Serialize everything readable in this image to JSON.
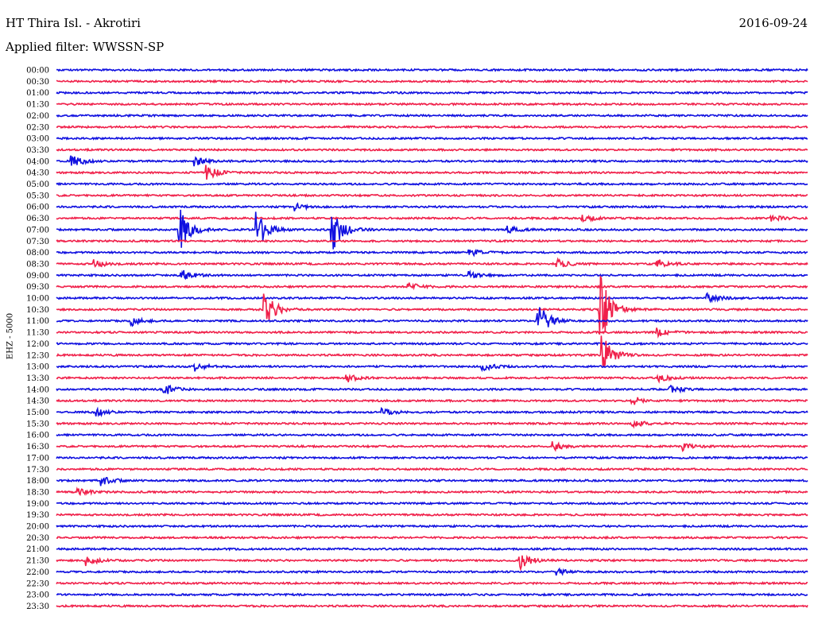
{
  "header": {
    "station": "HT Thira Isl. - Akrotiri",
    "date": "2016-09-24",
    "filter": "Applied filter: WWSSN-SP"
  },
  "chart_data": {
    "type": "line",
    "title": "HT Thira Isl. - Akrotiri",
    "ylabel": "EHZ - 5000",
    "row_labels": [
      "00:00",
      "00:30",
      "01:00",
      "01:30",
      "02:00",
      "02:30",
      "03:00",
      "03:30",
      "04:00",
      "04:30",
      "05:00",
      "05:30",
      "06:00",
      "06:30",
      "07:00",
      "07:30",
      "08:00",
      "08:30",
      "09:00",
      "09:30",
      "10:00",
      "10:30",
      "11:00",
      "11:30",
      "12:00",
      "12:30",
      "13:00",
      "13:30",
      "14:00",
      "14:30",
      "15:00",
      "15:30",
      "16:00",
      "16:30",
      "17:00",
      "17:30",
      "18:00",
      "18:30",
      "19:00",
      "19:30",
      "20:00",
      "20:30",
      "21:00",
      "21:30",
      "22:00",
      "22:30",
      "23:00",
      "23:30"
    ],
    "trace_colors": [
      "#1010e0",
      "#f0204a"
    ],
    "x_range_minutes": [
      0,
      30
    ],
    "events": [
      {
        "row": "04:00",
        "minute": 0.6,
        "amplitude": 8
      },
      {
        "row": "04:00",
        "minute": 5.5,
        "amplitude": 6
      },
      {
        "row": "04:30",
        "minute": 6.0,
        "amplitude": 9
      },
      {
        "row": "06:00",
        "minute": 9.5,
        "amplitude": 5
      },
      {
        "row": "06:30",
        "minute": 21.0,
        "amplitude": 5
      },
      {
        "row": "06:30",
        "minute": 28.5,
        "amplitude": 5
      },
      {
        "row": "07:00",
        "minute": 4.9,
        "amplitude": 30
      },
      {
        "row": "07:00",
        "minute": 8.0,
        "amplitude": 26
      },
      {
        "row": "07:00",
        "minute": 11.0,
        "amplitude": 30
      },
      {
        "row": "07:00",
        "minute": 18.0,
        "amplitude": 5
      },
      {
        "row": "08:00",
        "minute": 16.5,
        "amplitude": 5
      },
      {
        "row": "08:30",
        "minute": 1.5,
        "amplitude": 6
      },
      {
        "row": "08:30",
        "minute": 20.0,
        "amplitude": 6
      },
      {
        "row": "08:30",
        "minute": 24.0,
        "amplitude": 6
      },
      {
        "row": "09:00",
        "minute": 5.0,
        "amplitude": 8
      },
      {
        "row": "09:00",
        "minute": 16.5,
        "amplitude": 5
      },
      {
        "row": "09:30",
        "minute": 14.0,
        "amplitude": 6
      },
      {
        "row": "10:00",
        "minute": 26.0,
        "amplitude": 6
      },
      {
        "row": "10:30",
        "minute": 8.3,
        "amplitude": 26
      },
      {
        "row": "10:30",
        "minute": 21.7,
        "amplitude": 50
      },
      {
        "row": "11:00",
        "minute": 3.0,
        "amplitude": 6
      },
      {
        "row": "11:00",
        "minute": 19.2,
        "amplitude": 28
      },
      {
        "row": "11:30",
        "minute": 24.0,
        "amplitude": 5
      },
      {
        "row": "12:30",
        "minute": 21.8,
        "amplitude": 26
      },
      {
        "row": "13:00",
        "minute": 5.5,
        "amplitude": 7
      },
      {
        "row": "13:00",
        "minute": 17.0,
        "amplitude": 6
      },
      {
        "row": "13:30",
        "minute": 11.6,
        "amplitude": 5
      },
      {
        "row": "13:30",
        "minute": 24.0,
        "amplitude": 5
      },
      {
        "row": "14:00",
        "minute": 4.3,
        "amplitude": 8
      },
      {
        "row": "14:00",
        "minute": 24.5,
        "amplitude": 6
      },
      {
        "row": "14:30",
        "minute": 23.0,
        "amplitude": 6
      },
      {
        "row": "15:00",
        "minute": 1.6,
        "amplitude": 5
      },
      {
        "row": "15:00",
        "minute": 13.0,
        "amplitude": 5
      },
      {
        "row": "15:30",
        "minute": 23.0,
        "amplitude": 6
      },
      {
        "row": "16:30",
        "minute": 19.8,
        "amplitude": 6
      },
      {
        "row": "16:30",
        "minute": 25.0,
        "amplitude": 5
      },
      {
        "row": "18:00",
        "minute": 1.8,
        "amplitude": 6
      },
      {
        "row": "18:30",
        "minute": 0.8,
        "amplitude": 6
      },
      {
        "row": "21:30",
        "minute": 1.2,
        "amplitude": 7
      },
      {
        "row": "21:30",
        "minute": 18.5,
        "amplitude": 12
      },
      {
        "row": "22:00",
        "minute": 20.0,
        "amplitude": 4
      }
    ]
  }
}
